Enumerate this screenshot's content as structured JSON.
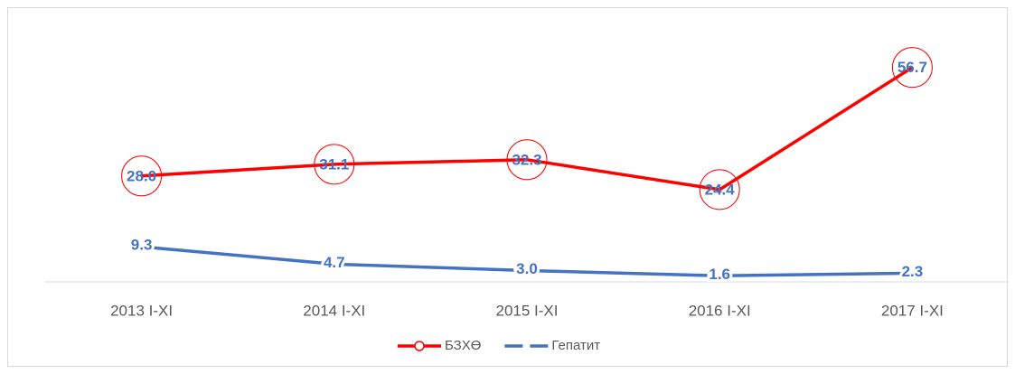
{
  "chart_data": {
    "type": "line",
    "categories": [
      "2013 I-XI",
      "2014 I-XI",
      "2015 I-XI",
      "2016 I-XI",
      "2017 I-XI"
    ],
    "series": [
      {
        "name": "БЗХӨ",
        "color": "#ff0000",
        "marker": "circle",
        "values": [
          28.0,
          31.1,
          32.3,
          24.4,
          56.7
        ],
        "value_labels": [
          "28.0",
          "31.1",
          "32.3",
          "24.4",
          "56.7"
        ]
      },
      {
        "name": "Гепатит",
        "color": "#4472c4",
        "values": [
          9.3,
          4.7,
          3.0,
          1.6,
          2.3
        ],
        "value_labels": [
          "9.3",
          "4.7",
          "3.0",
          "1.6",
          "2.3"
        ]
      }
    ],
    "ylim": [
      0,
      70
    ],
    "grid": false,
    "legend": "bottom"
  }
}
